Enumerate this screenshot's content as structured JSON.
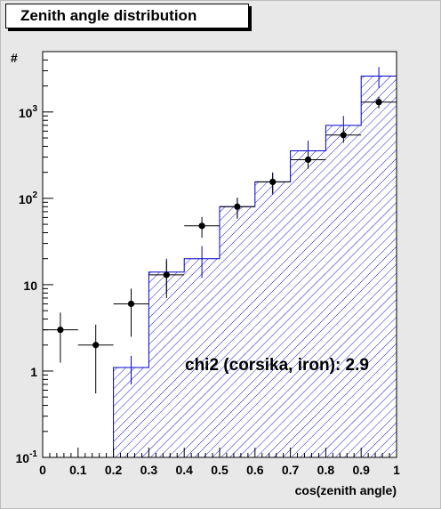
{
  "title": "Zenith angle distribution",
  "annotation": "chi2 (corsika, iron): 2.9",
  "colors": {
    "background": "#e8e8e8",
    "plot_area": "#ffffff",
    "hist": "#0000cc",
    "data": "#000000"
  },
  "chart_data": {
    "type": "bar",
    "xlabel": "cos(zenith angle)",
    "ylabel": "#",
    "xlim": [
      0,
      1
    ],
    "ylim": [
      0.1,
      5000
    ],
    "yscale": "log",
    "grid": false,
    "x_ticks": [
      "0",
      "0.1",
      "0.2",
      "0.3",
      "0.4",
      "0.5",
      "0.6",
      "0.7",
      "0.8",
      "0.9",
      "1"
    ],
    "y_ticks": [
      {
        "value": 0.1,
        "base": "10",
        "exp": "-1"
      },
      {
        "value": 1,
        "base": "1",
        "exp": ""
      },
      {
        "value": 10,
        "base": "10",
        "exp": ""
      },
      {
        "value": 100,
        "base": "10",
        "exp": "2"
      },
      {
        "value": 1000,
        "base": "10",
        "exp": "3"
      }
    ],
    "series": [
      {
        "style": "histogram (hatched, blue)",
        "bins": [
          [
            0.0,
            0.1
          ],
          [
            0.1,
            0.2
          ],
          [
            0.2,
            0.3
          ],
          [
            0.3,
            0.4
          ],
          [
            0.4,
            0.5
          ],
          [
            0.5,
            0.6
          ],
          [
            0.6,
            0.7
          ],
          [
            0.7,
            0.8
          ],
          [
            0.8,
            0.9
          ],
          [
            0.9,
            1.0
          ]
        ],
        "values": [
          0,
          0,
          1.1,
          14,
          20,
          80,
          155,
          355,
          700,
          2600
        ],
        "errors": [
          0,
          0,
          0.4,
          6,
          8,
          20,
          45,
          110,
          200,
          700
        ]
      },
      {
        "style": "data points with error bars (black)",
        "x": [
          0.05,
          0.15,
          0.25,
          0.35,
          0.45,
          0.55,
          0.65,
          0.75,
          0.85,
          0.95
        ],
        "values": [
          3,
          2,
          6,
          13,
          48,
          80,
          155,
          280,
          540,
          1300
        ],
        "err_low": [
          1.75,
          1.45,
          3.5,
          6,
          13,
          22,
          40,
          60,
          100,
          200
        ],
        "err_high": [
          1.75,
          1.45,
          3.0,
          6,
          13,
          22,
          40,
          60,
          100,
          200
        ]
      }
    ]
  }
}
